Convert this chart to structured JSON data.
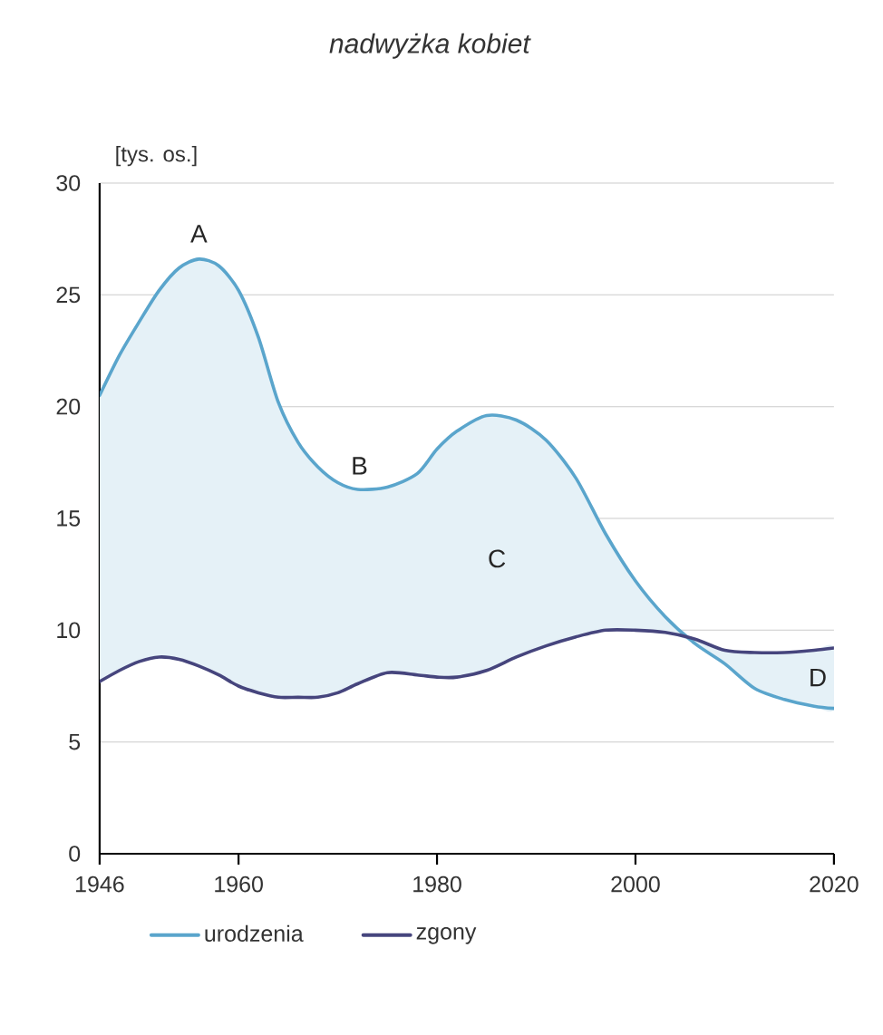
{
  "chart_data": {
    "type": "line",
    "ylabel": "[tys. os.]",
    "annotations": [
      "nadwyżka kobiet",
      {
        "text": "A",
        "x": 1956,
        "y": 26.6
      },
      {
        "text": "B",
        "x": 1972,
        "y": 16.3
      },
      "C",
      {
        "text": "D",
        "x": 2018,
        "y": 9.1
      }
    ],
    "x": [
      1946,
      1948,
      1950,
      1952,
      1954,
      1956,
      1958,
      1960,
      1962,
      1964,
      1966,
      1968,
      1970,
      1972,
      1975,
      1978,
      1980,
      1982,
      1985,
      1988,
      1991,
      1994,
      1997,
      2000,
      2003,
      2006,
      2009,
      2012,
      2015,
      2018,
      2020
    ],
    "series": [
      {
        "name": "urodzenia",
        "color": "#5aa5cc",
        "values": [
          20.5,
          22.3,
          23.8,
          25.2,
          26.2,
          26.6,
          26.3,
          25.2,
          23.1,
          20.2,
          18.4,
          17.3,
          16.6,
          16.3,
          16.4,
          17.0,
          18.1,
          18.9,
          19.6,
          19.4,
          18.5,
          16.8,
          14.3,
          12.2,
          10.6,
          9.4,
          8.5,
          7.4,
          6.9,
          6.6,
          6.5
        ],
        "lower": [
          7.7,
          8.2,
          8.6,
          8.8,
          8.7,
          8.4,
          8.0,
          7.5,
          7.2,
          7.0,
          7.0,
          7.0,
          7.2,
          7.6,
          8.1,
          8.0,
          7.9,
          7.9,
          8.2,
          8.8,
          9.3,
          9.7,
          10.0,
          10.0,
          9.9,
          9.4,
          8.5,
          7.4,
          6.9,
          6.6,
          6.5
        ],
        "upper": [
          20.5,
          22.3,
          23.8,
          25.2,
          26.2,
          26.6,
          26.3,
          25.2,
          23.1,
          20.2,
          18.4,
          17.3,
          16.6,
          16.3,
          16.4,
          17.0,
          18.1,
          18.9,
          19.6,
          19.4,
          18.5,
          16.8,
          14.3,
          12.2,
          10.6,
          9.6,
          9.1,
          9.0,
          9.0,
          9.1,
          9.2
        ]
      },
      {
        "name": "zgony",
        "color": "#46457d",
        "values": [
          7.7,
          8.2,
          8.6,
          8.8,
          8.7,
          8.4,
          8.0,
          7.5,
          7.2,
          7.0,
          7.0,
          7.0,
          7.2,
          7.6,
          8.1,
          8.0,
          7.9,
          7.9,
          8.2,
          8.8,
          9.3,
          9.7,
          10.0,
          10.0,
          9.9,
          9.6,
          9.1,
          9.0,
          9.0,
          9.1,
          9.2
        ]
      }
    ],
    "xlim": [
      1946,
      2020
    ],
    "ylim": [
      0,
      30
    ],
    "xticks": [
      1946,
      1960,
      1980,
      2000,
      2020
    ],
    "yticks": [
      0,
      5,
      10,
      15,
      20,
      25,
      30
    ],
    "grid": "y",
    "legend": "bottom"
  }
}
